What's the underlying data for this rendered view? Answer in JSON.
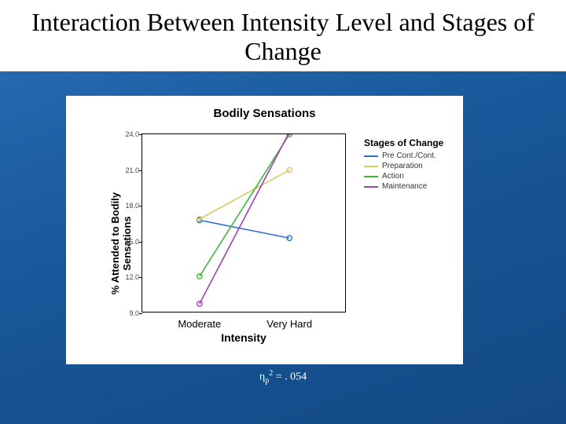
{
  "slide": {
    "title": "Interaction Between Intensity Level and Stages of Change",
    "caption_html": "η<sub>p</sub><sup>2</sup> = . 054"
  },
  "chart": {
    "type": "line",
    "title": "Bodily Sensations",
    "ylabel": "% Attended to Bodily\nSensations",
    "xlabel": "Intensity",
    "categories": [
      "Moderate",
      "Very Hard"
    ],
    "ylim": [
      9.0,
      24.0
    ],
    "ytick_step": 3.0,
    "yticks": [
      9.0,
      12.0,
      15.0,
      18.0,
      21.0,
      24.0
    ],
    "x_positions": [
      0.28,
      0.72
    ],
    "marker_radius": 3.2,
    "line_width": 1.6,
    "plot_border_color": "#000000",
    "background_color": "#ffffff",
    "tick_font_size": 9,
    "label_font_size": 13,
    "title_font_size": 15,
    "series": [
      {
        "name": "Pre Cont./Cont.",
        "color": "#2e6fcf",
        "y": [
          16.8,
          15.3
        ]
      },
      {
        "name": "Preparation",
        "color": "#d7cb5a",
        "y": [
          16.9,
          21.0
        ]
      },
      {
        "name": "Action",
        "color": "#3bb63b",
        "y": [
          12.1,
          24.0
        ]
      },
      {
        "name": "Maintenance",
        "color": "#a23fb3",
        "y": [
          9.8,
          24.2
        ]
      }
    ],
    "legend": {
      "title": "Stages of\nChange",
      "font_size": 10
    }
  }
}
